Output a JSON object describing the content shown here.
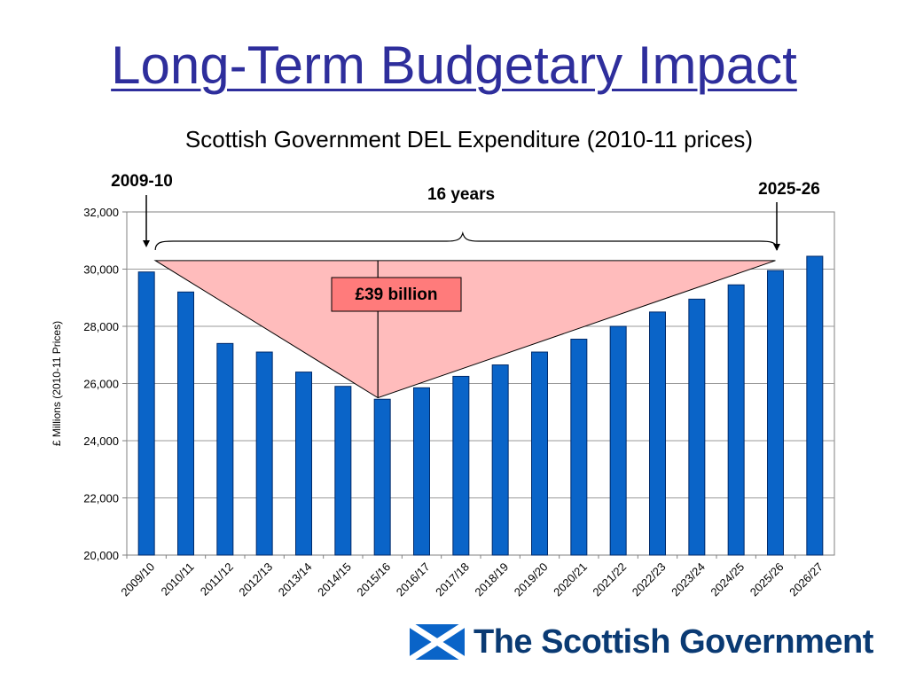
{
  "slide": {
    "title": "Long-Term Budgetary Impact",
    "logo_text": "The Scottish Government"
  },
  "colors": {
    "title": "#2e2e9c",
    "bar": "#0a64c8",
    "triangle_fill": "#ffbcbc",
    "label_fill": "#ff7b7b",
    "logo": "#0a3a73"
  },
  "annotations": {
    "start_label": "2009-10",
    "end_label": "2025-26",
    "span_label": "16 years",
    "gap_label": "£39  billion"
  },
  "chart_data": {
    "type": "bar",
    "title": "Scottish Government DEL Expenditure (2010-11 prices)",
    "xlabel": "",
    "ylabel": "£ Millions (2010-11 Prices)",
    "ylim": [
      20000,
      32000
    ],
    "yticks": [
      20000,
      22000,
      24000,
      26000,
      28000,
      30000,
      32000
    ],
    "ytick_labels": [
      "20,000",
      "22,000",
      "24,000",
      "26,000",
      "28,000",
      "30,000",
      "32,000"
    ],
    "grid": true,
    "legend": "none",
    "categories": [
      "2009/10",
      "2010/11",
      "2011/12",
      "2012/13",
      "2013/14",
      "2014/15",
      "2015/16",
      "2016/17",
      "2017/18",
      "2018/19",
      "2019/20",
      "2020/21",
      "2021/22",
      "2022/23",
      "2023/24",
      "2024/25",
      "2025/26",
      "2026/27"
    ],
    "values": [
      29900,
      29200,
      27400,
      27100,
      26400,
      25900,
      25450,
      25850,
      26250,
      26650,
      27100,
      27550,
      28000,
      28500,
      28950,
      29450,
      29950,
      30450
    ],
    "triangle_top": 30300,
    "triangle_bottom": 25500
  }
}
